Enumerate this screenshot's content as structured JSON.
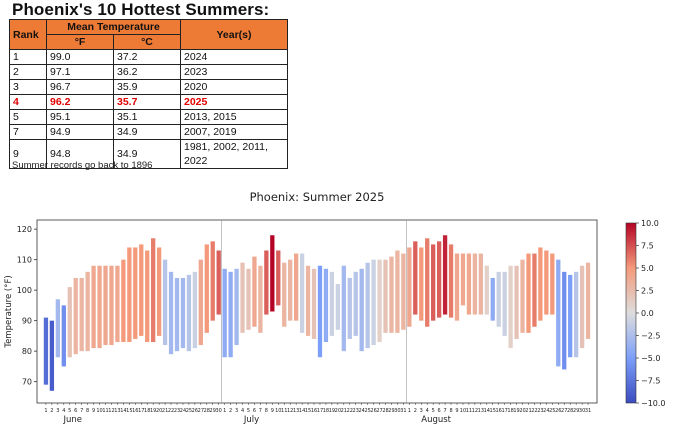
{
  "table": {
    "title": "Phoenix's 10 Hottest Summers:",
    "headers": {
      "rank": "Rank",
      "mean": "Mean Temperature",
      "f": "°F",
      "c": "°C",
      "years": "Year(s)"
    },
    "rows": [
      {
        "rank": "1",
        "f": "99.0",
        "c": "37.2",
        "years": "2024",
        "highlight": false
      },
      {
        "rank": "2",
        "f": "97.1",
        "c": "36.2",
        "years": "2023",
        "highlight": false
      },
      {
        "rank": "3",
        "f": "96.7",
        "c": "35.9",
        "years": "2020",
        "highlight": false
      },
      {
        "rank": "4",
        "f": "96.2",
        "c": "35.7",
        "years": "2025",
        "highlight": true
      },
      {
        "rank": "5",
        "f": "95.1",
        "c": "35.1",
        "years": "2013, 2015",
        "highlight": false
      },
      {
        "rank": "7",
        "f": "94.9",
        "c": "34.9",
        "years": "2007, 2019",
        "highlight": false
      },
      {
        "rank": "9",
        "f": "94.8",
        "c": "34.9",
        "years": "1981, 2002, 2011, 2022",
        "highlight": false
      }
    ],
    "footnote": "Summer records go back to 1896",
    "highlight_color": "#e00000",
    "header_color": "#ee7b35"
  },
  "chart_data": {
    "type": "bar",
    "title": "Phoenix: Summer 2025",
    "ylabel": "Temperature (°F)",
    "xlabel": "",
    "ylim": [
      63,
      123
    ],
    "yticks": [
      70,
      80,
      90,
      100,
      110,
      120
    ],
    "months": [
      {
        "name": "June",
        "days": 30
      },
      {
        "name": "July",
        "days": 31
      },
      {
        "name": "August",
        "days": 31
      }
    ],
    "colorbar": {
      "min": -10,
      "max": 10,
      "ticks": [
        "10.0",
        "7.5",
        "5.0",
        "2.5",
        "0.0",
        "−2.5",
        "−5.0",
        "−7.5",
        "−10.0"
      ]
    },
    "series_meaning": "Each bar spans daily low to daily high (°F); color = anomaly vs normal",
    "lows": [
      69,
      67,
      78,
      75,
      78,
      79,
      80,
      80,
      81,
      81,
      82,
      82,
      83,
      83,
      83,
      84,
      85,
      83,
      83,
      85,
      82,
      79,
      80,
      81,
      80,
      81,
      82,
      86,
      90,
      92,
      78,
      78,
      82,
      86,
      87,
      88,
      86,
      92,
      93,
      95,
      88,
      90,
      90,
      86,
      85,
      84,
      78,
      83,
      85,
      87,
      80,
      84,
      85,
      80,
      81,
      82,
      83,
      86,
      86,
      86,
      87,
      88,
      92,
      90,
      88,
      90,
      91,
      92,
      91,
      90,
      95,
      92,
      92,
      92,
      92,
      90,
      88,
      85,
      81,
      84,
      86,
      86,
      88,
      90,
      92,
      92,
      75,
      74,
      78,
      78,
      81,
      84
    ],
    "highs": [
      91,
      90,
      97,
      95,
      101,
      104,
      104,
      106,
      108,
      108,
      108,
      108,
      108,
      110,
      114,
      114,
      115,
      113,
      117,
      114,
      110,
      106,
      104,
      104,
      105,
      106,
      110,
      115,
      116,
      113,
      107,
      106,
      107,
      109,
      107,
      111,
      108,
      113,
      118,
      113,
      109,
      110,
      112,
      112,
      108,
      107,
      108,
      107,
      106,
      102,
      108,
      104,
      106,
      107,
      109,
      110,
      110,
      110,
      111,
      113,
      112,
      114,
      116,
      114,
      117,
      115,
      116,
      118,
      115,
      112,
      112,
      112,
      112,
      112,
      108,
      104,
      106,
      106,
      108,
      108,
      110,
      112,
      112,
      114,
      113,
      112,
      110,
      106,
      105,
      106,
      108,
      109
    ],
    "anomalies": [
      -8,
      -9,
      -3,
      -6,
      2,
      3,
      3,
      3,
      4,
      4,
      4,
      4,
      4,
      5,
      5,
      5,
      5,
      5,
      6,
      5,
      -2,
      -3,
      -3,
      -3,
      -2,
      -1,
      4,
      5,
      6,
      7,
      -4,
      -4,
      -3,
      2,
      2,
      4,
      3,
      7,
      10,
      7,
      3,
      3,
      4,
      -1,
      3,
      2,
      -5,
      -4,
      -1,
      -1,
      -3,
      -2,
      -2,
      -3,
      -2,
      -1,
      1,
      2,
      3,
      3,
      3,
      4,
      7,
      5,
      6,
      7,
      7,
      9,
      6,
      4,
      4,
      4,
      3,
      3,
      1,
      -4,
      -1,
      -1,
      1,
      2,
      3,
      5,
      6,
      5,
      5,
      5,
      -4,
      -6,
      -5,
      -2,
      2,
      3
    ]
  }
}
